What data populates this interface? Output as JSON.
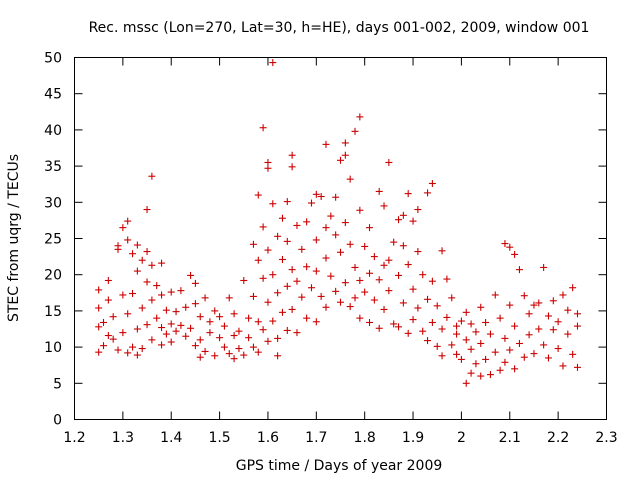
{
  "chart_data": {
    "type": "scatter",
    "title": "Rec. mssc (Lon=270, Lat=30, h=HE), days 001-002, 2009, window 001",
    "xlabel": "GPS time / Days of year 2009",
    "ylabel": "STEC from uqrg / TECUs",
    "xlim": [
      1.2,
      2.3
    ],
    "ylim": [
      0,
      50
    ],
    "xticks": [
      "1.2",
      "1.3",
      "1.4",
      "1.5",
      "1.6",
      "1.7",
      "1.8",
      "1.9",
      "2",
      "2.1",
      "2.2",
      "2.3"
    ],
    "yticks": [
      "0",
      "5",
      "10",
      "15",
      "20",
      "25",
      "30",
      "35",
      "40",
      "45",
      "50"
    ],
    "grid": false,
    "legend": "none",
    "marker": "plus",
    "color": "#cc0000",
    "series": [
      {
        "points": [
          [
            1.25,
            9.3
          ],
          [
            1.25,
            12.8
          ],
          [
            1.25,
            15.4
          ],
          [
            1.25,
            17.9
          ],
          [
            1.26,
            10.2
          ],
          [
            1.26,
            13.4
          ],
          [
            1.27,
            16.5
          ],
          [
            1.27,
            19.2
          ],
          [
            1.28,
            11.1
          ],
          [
            1.28,
            14.2
          ],
          [
            1.29,
            23.5
          ],
          [
            1.29,
            24.0
          ],
          [
            1.29,
            9.6
          ],
          [
            1.3,
            26.5
          ],
          [
            1.3,
            17.2
          ],
          [
            1.3,
            12.0
          ],
          [
            1.31,
            27.4
          ],
          [
            1.31,
            24.8
          ],
          [
            1.31,
            9.2
          ],
          [
            1.31,
            14.6
          ],
          [
            1.32,
            22.9
          ],
          [
            1.32,
            17.4
          ],
          [
            1.32,
            10.0
          ],
          [
            1.33,
            24.1
          ],
          [
            1.33,
            20.5
          ],
          [
            1.33,
            12.5
          ],
          [
            1.34,
            22.0
          ],
          [
            1.34,
            15.4
          ],
          [
            1.34,
            9.8
          ],
          [
            1.35,
            29.0
          ],
          [
            1.35,
            23.2
          ],
          [
            1.35,
            19.0
          ],
          [
            1.35,
            13.1
          ],
          [
            1.36,
            33.6
          ],
          [
            1.36,
            21.3
          ],
          [
            1.36,
            16.5
          ],
          [
            1.36,
            11.0
          ],
          [
            1.37,
            18.5
          ],
          [
            1.37,
            14.0
          ],
          [
            1.38,
            21.6
          ],
          [
            1.38,
            17.2
          ],
          [
            1.38,
            12.7
          ],
          [
            1.38,
            10.3
          ],
          [
            1.39,
            15.1
          ],
          [
            1.39,
            11.8
          ],
          [
            1.4,
            17.6
          ],
          [
            1.4,
            13.2
          ],
          [
            1.4,
            10.7
          ],
          [
            1.41,
            14.9
          ],
          [
            1.41,
            12.2
          ],
          [
            1.42,
            17.8
          ],
          [
            1.42,
            13.0
          ],
          [
            1.43,
            11.5
          ],
          [
            1.43,
            15.5
          ],
          [
            1.44,
            19.9
          ],
          [
            1.44,
            12.6
          ],
          [
            1.45,
            18.8
          ],
          [
            1.45,
            16.0
          ],
          [
            1.45,
            10.2
          ],
          [
            1.46,
            14.2
          ],
          [
            1.46,
            11.0
          ],
          [
            1.47,
            16.8
          ],
          [
            1.47,
            9.4
          ],
          [
            1.48,
            13.5
          ],
          [
            1.48,
            12.0
          ],
          [
            1.49,
            15.0
          ],
          [
            1.49,
            8.8
          ],
          [
            1.5,
            11.3
          ],
          [
            1.5,
            14.2
          ],
          [
            1.51,
            10.0
          ],
          [
            1.51,
            12.9
          ],
          [
            1.52,
            16.8
          ],
          [
            1.52,
            9.1
          ],
          [
            1.53,
            11.6
          ],
          [
            1.53,
            14.6
          ],
          [
            1.54,
            9.8
          ],
          [
            1.54,
            12.2
          ],
          [
            1.55,
            19.2
          ],
          [
            1.55,
            8.9
          ],
          [
            1.56,
            11.3
          ],
          [
            1.56,
            14.0
          ],
          [
            1.57,
            24.2
          ],
          [
            1.57,
            17.0
          ],
          [
            1.57,
            10.0
          ],
          [
            1.58,
            31.0
          ],
          [
            1.58,
            22.0
          ],
          [
            1.58,
            13.5
          ],
          [
            1.58,
            9.3
          ],
          [
            1.59,
            40.3
          ],
          [
            1.59,
            26.6
          ],
          [
            1.59,
            19.5
          ],
          [
            1.59,
            12.4
          ],
          [
            1.6,
            35.5
          ],
          [
            1.6,
            34.7
          ],
          [
            1.6,
            23.4
          ],
          [
            1.6,
            16.2
          ],
          [
            1.6,
            10.8
          ],
          [
            1.61,
            49.3
          ],
          [
            1.61,
            29.8
          ],
          [
            1.61,
            20.0
          ],
          [
            1.61,
            13.6
          ],
          [
            1.62,
            25.3
          ],
          [
            1.62,
            17.5
          ],
          [
            1.62,
            11.2
          ],
          [
            1.63,
            27.8
          ],
          [
            1.63,
            22.1
          ],
          [
            1.63,
            14.8
          ],
          [
            1.64,
            30.1
          ],
          [
            1.64,
            24.6
          ],
          [
            1.64,
            18.4
          ],
          [
            1.64,
            12.3
          ],
          [
            1.65,
            36.5
          ],
          [
            1.65,
            34.9
          ],
          [
            1.65,
            20.7
          ],
          [
            1.65,
            15.2
          ],
          [
            1.66,
            26.8
          ],
          [
            1.66,
            19.1
          ],
          [
            1.66,
            12.0
          ],
          [
            1.67,
            23.5
          ],
          [
            1.67,
            16.9
          ],
          [
            1.68,
            27.3
          ],
          [
            1.68,
            21.1
          ],
          [
            1.68,
            14.0
          ],
          [
            1.69,
            29.9
          ],
          [
            1.69,
            18.2
          ],
          [
            1.7,
            31.1
          ],
          [
            1.7,
            24.8
          ],
          [
            1.7,
            20.5
          ],
          [
            1.7,
            13.5
          ],
          [
            1.71,
            30.8
          ],
          [
            1.71,
            17.0
          ],
          [
            1.72,
            38.0
          ],
          [
            1.72,
            26.5
          ],
          [
            1.72,
            22.3
          ],
          [
            1.72,
            15.5
          ],
          [
            1.73,
            28.1
          ],
          [
            1.73,
            19.8
          ],
          [
            1.74,
            30.7
          ],
          [
            1.74,
            25.5
          ],
          [
            1.74,
            17.7
          ],
          [
            1.75,
            35.8
          ],
          [
            1.75,
            23.1
          ],
          [
            1.75,
            16.2
          ],
          [
            1.76,
            38.2
          ],
          [
            1.76,
            36.5
          ],
          [
            1.76,
            27.2
          ],
          [
            1.76,
            18.9
          ],
          [
            1.77,
            33.2
          ],
          [
            1.77,
            24.2
          ],
          [
            1.77,
            15.6
          ],
          [
            1.78,
            39.8
          ],
          [
            1.78,
            21.0
          ],
          [
            1.78,
            16.8
          ],
          [
            1.79,
            41.8
          ],
          [
            1.79,
            28.9
          ],
          [
            1.79,
            19.2
          ],
          [
            1.79,
            14.0
          ],
          [
            1.8,
            23.9
          ],
          [
            1.8,
            17.6
          ],
          [
            1.81,
            26.5
          ],
          [
            1.81,
            20.2
          ],
          [
            1.81,
            13.4
          ],
          [
            1.82,
            22.5
          ],
          [
            1.82,
            16.5
          ],
          [
            1.83,
            31.5
          ],
          [
            1.83,
            19.3
          ],
          [
            1.83,
            12.6
          ],
          [
            1.84,
            29.5
          ],
          [
            1.84,
            21.3
          ],
          [
            1.84,
            15.2
          ],
          [
            1.85,
            35.5
          ],
          [
            1.85,
            22.0
          ],
          [
            1.85,
            17.8
          ],
          [
            1.86,
            24.5
          ],
          [
            1.86,
            13.2
          ],
          [
            1.87,
            27.6
          ],
          [
            1.87,
            19.9
          ],
          [
            1.87,
            12.8
          ],
          [
            1.88,
            28.2
          ],
          [
            1.88,
            24.0
          ],
          [
            1.88,
            16.1
          ],
          [
            1.89,
            31.2
          ],
          [
            1.89,
            21.4
          ],
          [
            1.89,
            11.9
          ],
          [
            1.9,
            27.4
          ],
          [
            1.9,
            18.0
          ],
          [
            1.9,
            13.8
          ],
          [
            1.91,
            29.0
          ],
          [
            1.91,
            23.2
          ],
          [
            1.91,
            15.4
          ],
          [
            1.92,
            20.0
          ],
          [
            1.92,
            12.2
          ],
          [
            1.93,
            31.3
          ],
          [
            1.93,
            16.6
          ],
          [
            1.93,
            10.9
          ],
          [
            1.94,
            32.6
          ],
          [
            1.94,
            19.1
          ],
          [
            1.94,
            13.4
          ],
          [
            1.95,
            15.7
          ],
          [
            1.95,
            10.1
          ],
          [
            1.96,
            23.3
          ],
          [
            1.96,
            12.5
          ],
          [
            1.96,
            8.8
          ],
          [
            1.97,
            19.4
          ],
          [
            1.97,
            14.1
          ],
          [
            1.98,
            16.8
          ],
          [
            1.98,
            10.3
          ],
          [
            1.99,
            12.9
          ],
          [
            1.99,
            9.0
          ],
          [
            2.0,
            13.6
          ],
          [
            2.0,
            8.3
          ],
          [
            2.01,
            5.0
          ],
          [
            2.01,
            11.0
          ],
          [
            2.01,
            14.8
          ],
          [
            2.02,
            6.4
          ],
          [
            2.02,
            9.7
          ],
          [
            2.02,
            13.2
          ],
          [
            2.03,
            7.7
          ],
          [
            2.03,
            12.1
          ],
          [
            2.04,
            6.0
          ],
          [
            2.04,
            10.5
          ],
          [
            2.04,
            15.5
          ],
          [
            2.05,
            8.3
          ],
          [
            2.05,
            13.4
          ],
          [
            2.06,
            6.2
          ],
          [
            2.06,
            11.8
          ],
          [
            2.07,
            17.2
          ],
          [
            2.07,
            9.3
          ],
          [
            2.08,
            6.8
          ],
          [
            2.08,
            14.0
          ],
          [
            2.09,
            24.3
          ],
          [
            2.09,
            11.2
          ],
          [
            2.09,
            7.9
          ],
          [
            2.1,
            23.8
          ],
          [
            2.1,
            15.8
          ],
          [
            2.1,
            9.6
          ],
          [
            2.11,
            22.8
          ],
          [
            2.11,
            12.9
          ],
          [
            2.11,
            7.0
          ],
          [
            2.12,
            20.7
          ],
          [
            2.12,
            10.5
          ],
          [
            2.13,
            17.1
          ],
          [
            2.13,
            8.6
          ],
          [
            2.14,
            14.6
          ],
          [
            2.14,
            11.7
          ],
          [
            2.15,
            15.8
          ],
          [
            2.15,
            9.1
          ],
          [
            2.16,
            12.5
          ],
          [
            2.16,
            16.1
          ],
          [
            2.17,
            21.0
          ],
          [
            2.17,
            10.3
          ],
          [
            2.18,
            14.3
          ],
          [
            2.18,
            8.5
          ],
          [
            2.19,
            12.4
          ],
          [
            2.19,
            16.4
          ],
          [
            2.2,
            9.8
          ],
          [
            2.2,
            13.5
          ],
          [
            2.21,
            17.2
          ],
          [
            2.21,
            7.4
          ],
          [
            2.22,
            11.8
          ],
          [
            2.22,
            15.1
          ],
          [
            2.23,
            18.2
          ],
          [
            2.23,
            9.0
          ],
          [
            2.24,
            12.9
          ],
          [
            2.24,
            7.2
          ],
          [
            2.24,
            14.6
          ],
          [
            1.27,
            11.6
          ],
          [
            1.33,
            8.9
          ],
          [
            1.46,
            8.6
          ],
          [
            1.53,
            8.4
          ],
          [
            1.62,
            8.8
          ],
          [
            1.99,
            11.8
          ]
        ]
      }
    ]
  }
}
